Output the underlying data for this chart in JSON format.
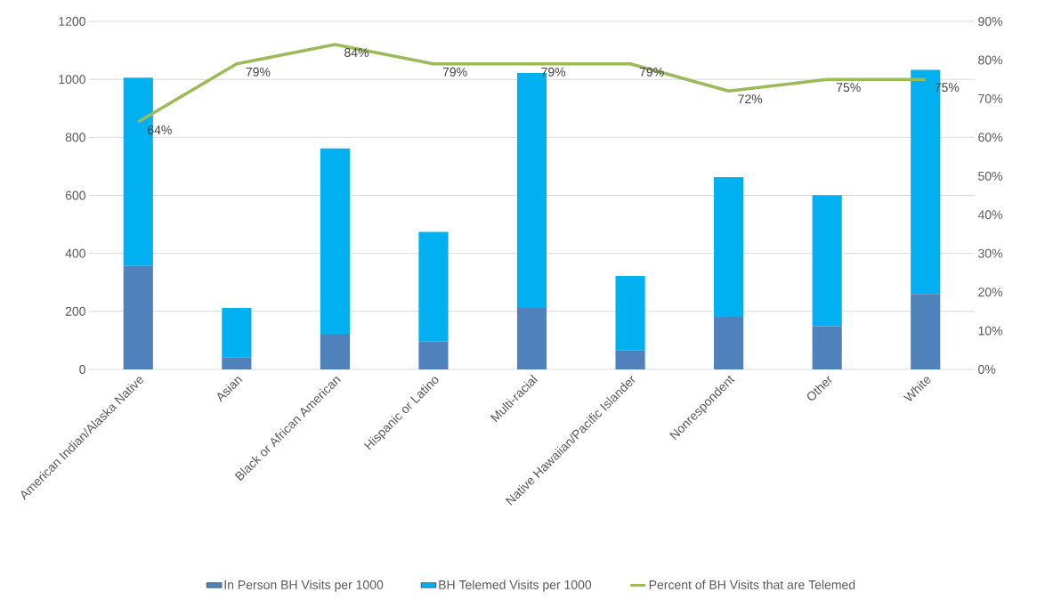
{
  "chart_data": {
    "type": "bar",
    "stacked": true,
    "categories": [
      "American Indian/Alaska Native",
      "Asian",
      "Black or African American",
      "Hispanic or Latino",
      "Multi-racial",
      "Native Hawaiian/Pacific Islander",
      "Nonrespondent",
      "Other",
      "White"
    ],
    "series": [
      {
        "name": "In Person BH Visits per 1000",
        "color": "#4f81bd",
        "values": [
          357,
          42,
          123,
          97,
          212,
          65,
          181,
          149,
          260
        ]
      },
      {
        "name": "BH Telemed Visits per 1000",
        "color": "#00b0f0",
        "values": [
          649,
          170,
          639,
          377,
          810,
          257,
          482,
          452,
          773
        ]
      },
      {
        "name": "Percent of BH Visits that are Telemed",
        "type": "line",
        "axis": "y2",
        "color": "#9bbb59",
        "values": [
          64,
          79,
          84,
          79,
          79,
          79,
          72,
          75,
          75
        ],
        "value_labels": [
          "64%",
          "79%",
          "84%",
          "79%",
          "79%",
          "79%",
          "72%",
          "75%",
          "75%"
        ]
      }
    ],
    "ylim": [
      0,
      1200
    ],
    "yticks": [
      0,
      200,
      400,
      600,
      800,
      1000,
      1200
    ],
    "y2lim": [
      0,
      90
    ],
    "y2ticks": [
      {
        "value": 0,
        "label": "0%"
      },
      {
        "value": 10,
        "label": "10%"
      },
      {
        "value": 20,
        "label": "20%"
      },
      {
        "value": 30,
        "label": "30%"
      },
      {
        "value": 40,
        "label": "40%"
      },
      {
        "value": 50,
        "label": "50%"
      },
      {
        "value": 60,
        "label": "60%"
      },
      {
        "value": 70,
        "label": "70%"
      },
      {
        "value": 80,
        "label": "80%"
      },
      {
        "value": 90,
        "label": "90%"
      }
    ],
    "grid": "y",
    "legend": "bottom"
  }
}
